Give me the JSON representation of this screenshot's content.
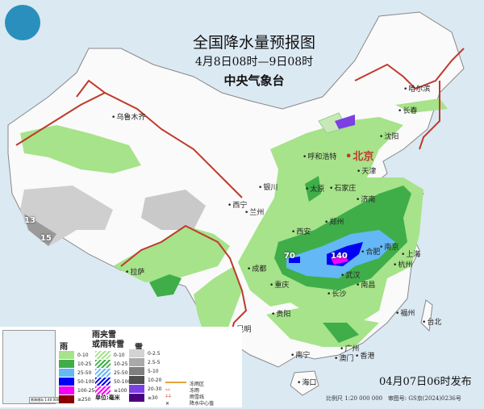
{
  "header": {
    "title": "全国降水量预报图",
    "period": "4月8日08时—9日08时",
    "issuer": "中央气象台"
  },
  "capital": "北京",
  "cities": [
    "乌鲁木齐",
    "哈尔滨",
    "长春",
    "沈阳",
    "呼和浩特",
    "天津",
    "银川",
    "太原",
    "石家庄",
    "济南",
    "西宁",
    "兰州",
    "西安",
    "郑州",
    "拉萨",
    "成都",
    "重庆",
    "合肥",
    "南京",
    "上海",
    "武汉",
    "杭州",
    "长沙",
    "南昌",
    "贵阳",
    "福州",
    "昆明",
    "台北",
    "广州",
    "南宁",
    "澳门",
    "香港",
    "海口"
  ],
  "precip_centers": [
    "70",
    "140",
    "13",
    "15"
  ],
  "legend": {
    "rain": {
      "title": "雨",
      "items": [
        {
          "label": "0-10",
          "color": "#a6e38a"
        },
        {
          "label": "10-25",
          "color": "#3fae49"
        },
        {
          "label": "25-50",
          "color": "#63b8f5"
        },
        {
          "label": "50-100",
          "color": "#0000f5"
        },
        {
          "label": "100-250",
          "color": "#f500f5"
        },
        {
          "label": "≥250",
          "color": "#8b0000"
        }
      ]
    },
    "sleet": {
      "title_line1": "雨夹雪",
      "title_line2": "或雨转雪",
      "items": [
        {
          "label": "0-10",
          "color": "#a6e38a"
        },
        {
          "label": "10-25",
          "color": "#3fae49"
        },
        {
          "label": "25-50",
          "color": "#63b8f5"
        },
        {
          "label": "50-100",
          "color": "#0000f5"
        },
        {
          "label": "≥100",
          "color": "#f500f5"
        }
      ]
    },
    "snow": {
      "title": "雪",
      "items": [
        {
          "label": "0-2.5",
          "color": "#d3d3d3"
        },
        {
          "label": "2.5-5",
          "color": "#a9a9a9"
        },
        {
          "label": "5-10",
          "color": "#7f7f7f"
        },
        {
          "label": "10-20",
          "color": "#4f4f4f"
        },
        {
          "label": "20-30",
          "color": "#7b3fe4"
        },
        {
          "label": "≥30",
          "color": "#4b0082"
        }
      ]
    },
    "symbols": [
      {
        "label": "冻雨区",
        "color": "#e8a33d"
      },
      {
        "label": "冻雨",
        "color": "#e8733d"
      },
      {
        "label": "雨雪线",
        "color": "#c0392b"
      },
      {
        "label": "降水中心值",
        "color": "#111111"
      }
    ],
    "unit": "单位:毫米"
  },
  "inset": {
    "caption": "南海诸岛 1:40 000 000"
  },
  "footer": {
    "issued": "04月07日06时发布",
    "scale": "比例尺 1:20 000 000",
    "review": "审图号: GS京(2024)0236号"
  }
}
